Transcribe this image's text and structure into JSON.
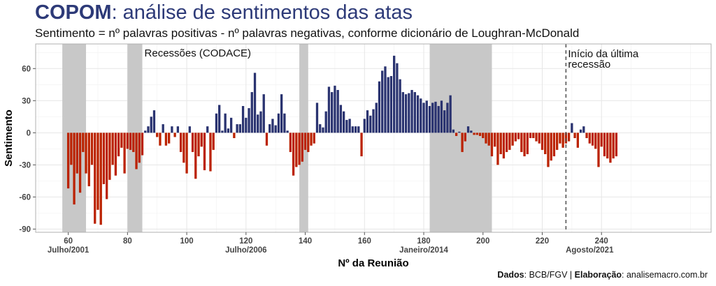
{
  "header": {
    "title_bold": "COPOM",
    "title_rest": ": análise de sentimentos das atas",
    "subtitle": "Sentimento = nº palavras positivas - nº palavras negativas, conforme dicionário de Loughran-McDonald"
  },
  "caption": {
    "dados_label": "Dados",
    "dados_value": ": BCB/FGV | ",
    "elab_label": "Elaboração",
    "elab_value": ": analisemacro.com.br"
  },
  "colors": {
    "positive": "#2a3370",
    "negative": "#bb2200",
    "recession": "#c8c8c8",
    "grid": "#e6e6e6",
    "panel_border": "#b0b0b0"
  },
  "chart_data": {
    "type": "bar",
    "xlabel": "Nº da Reunião",
    "ylabel": "Sentimento",
    "xlim": [
      49,
      277
    ],
    "ylim": [
      -93,
      83
    ],
    "x_ticks": [
      60,
      80,
      100,
      120,
      140,
      160,
      180,
      200,
      220,
      240
    ],
    "y_ticks": [
      -90,
      -60,
      -30,
      0,
      30,
      60
    ],
    "x_date_labels": [
      {
        "x": 60,
        "label": "Julho/2001"
      },
      {
        "x": 120,
        "label": "Julho/2006"
      },
      {
        "x": 180,
        "label": "Janeiro/2014"
      },
      {
        "x": 236,
        "label": "Agosto/2021"
      }
    ],
    "recessions": [
      [
        58,
        66
      ],
      [
        80,
        85
      ],
      [
        138,
        141
      ],
      [
        182,
        203
      ]
    ],
    "recession_label": "Recessões (CODACE)",
    "last_recession_line": {
      "x": 228,
      "label_line1": "Início da última",
      "label_line2": "recessão"
    },
    "x_start": 60,
    "values": [
      -52,
      -30,
      -67,
      -38,
      -56,
      -18,
      -38,
      -50,
      -30,
      -85,
      -72,
      -86,
      -48,
      -62,
      -44,
      -30,
      -40,
      -22,
      -14,
      -38,
      -15,
      -16,
      -18,
      -34,
      -28,
      -21,
      2,
      6,
      15,
      21,
      -4,
      -12,
      8,
      -12,
      -10,
      6,
      -4,
      6,
      -18,
      -28,
      -38,
      6,
      -18,
      -43,
      -22,
      -13,
      -35,
      6,
      -36,
      -16,
      18,
      26,
      2,
      18,
      4,
      14,
      -5,
      8,
      8,
      25,
      14,
      23,
      38,
      56,
      17,
      20,
      36,
      -12,
      8,
      13,
      7,
      18,
      36,
      18,
      2,
      -18,
      -40,
      -32,
      -30,
      -27,
      -16,
      -18,
      -12,
      -10,
      28,
      8,
      5,
      20,
      43,
      38,
      44,
      40,
      26,
      20,
      12,
      13,
      6,
      6,
      6,
      -22,
      13,
      21,
      16,
      22,
      28,
      48,
      58,
      62,
      52,
      53,
      72,
      65,
      50,
      38,
      36,
      37,
      40,
      38,
      35,
      32,
      28,
      30,
      25,
      28,
      29,
      25,
      30,
      21,
      28,
      35,
      3,
      -3,
      1,
      -18,
      -8,
      6,
      2,
      -2,
      -2,
      -3,
      -5,
      -10,
      -12,
      -22,
      -13,
      -30,
      -20,
      -24,
      -18,
      -16,
      -12,
      -8,
      -6,
      -18,
      -22,
      -20,
      -5,
      -5,
      -8,
      -10,
      -16,
      -20,
      -32,
      -26,
      -22,
      -16,
      -10,
      -14,
      -10,
      -8,
      9,
      -5,
      -14,
      3,
      6,
      -5,
      -10,
      -12,
      -15,
      -32,
      -13,
      -22,
      -24,
      -28,
      -24,
      -22
    ]
  }
}
